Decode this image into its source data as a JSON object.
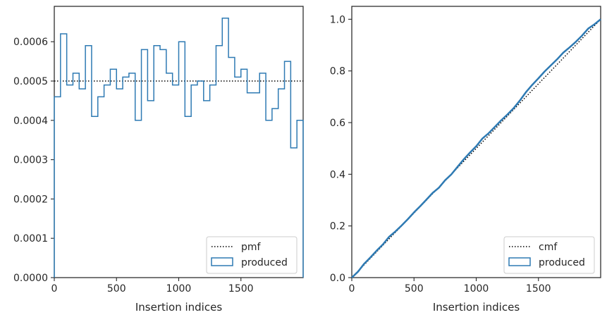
{
  "chart_data": [
    {
      "type": "line",
      "xlabel": "Insertion indices",
      "ylabel": "",
      "xlim": [
        0,
        2000
      ],
      "ylim": [
        0,
        0.00069
      ],
      "xticks": [
        "0",
        "500",
        "1000",
        "1500"
      ],
      "yticks": [
        "0.0000",
        "0.0001",
        "0.0002",
        "0.0003",
        "0.0004",
        "0.0005",
        "0.0006"
      ],
      "legend_position": "lower-right",
      "series": [
        {
          "name": "pmf",
          "style": "dotted",
          "color": "#000000",
          "x": [
            0,
            2000
          ],
          "values": [
            0.0005,
            0.0005
          ]
        },
        {
          "name": "produced",
          "style": "step-histogram",
          "color": "#2e7ab3",
          "bin_edges": [
            0,
            50,
            100,
            150,
            200,
            250,
            300,
            350,
            400,
            450,
            500,
            550,
            600,
            650,
            700,
            750,
            800,
            850,
            900,
            950,
            1000,
            1050,
            1100,
            1150,
            1200,
            1250,
            1300,
            1350,
            1400,
            1450,
            1500,
            1550,
            1600,
            1650,
            1700,
            1750,
            1800,
            1850,
            1900,
            1950,
            2000
          ],
          "values": [
            0.00046,
            0.00062,
            0.00049,
            0.00052,
            0.00048,
            0.00059,
            0.00041,
            0.00046,
            0.00049,
            0.00053,
            0.00048,
            0.00051,
            0.00052,
            0.0004,
            0.00058,
            0.00045,
            0.00059,
            0.00058,
            0.00052,
            0.00049,
            0.0006,
            0.00041,
            0.00049,
            0.0005,
            0.00045,
            0.00049,
            0.00059,
            0.00066,
            0.00056,
            0.00051,
            0.00053,
            0.00047,
            0.00047,
            0.00052,
            0.0004,
            0.00043,
            0.00048,
            0.00055,
            0.00033,
            0.0004
          ]
        }
      ]
    },
    {
      "type": "line",
      "xlabel": "Insertion indices",
      "ylabel": "",
      "xlim": [
        0,
        2000
      ],
      "ylim": [
        0,
        1.05
      ],
      "xticks": [
        "0",
        "500",
        "1000",
        "1500"
      ],
      "yticks": [
        "0.0",
        "0.2",
        "0.4",
        "0.6",
        "0.8",
        "1.0"
      ],
      "legend_position": "lower-right",
      "series": [
        {
          "name": "cmf",
          "style": "dotted",
          "color": "#000000",
          "x": [
            0,
            2000
          ],
          "values": [
            0,
            1.0
          ]
        },
        {
          "name": "produced",
          "style": "step-cumulative",
          "color": "#2e7ab3",
          "x": [
            0,
            50,
            100,
            150,
            200,
            250,
            300,
            350,
            400,
            450,
            500,
            550,
            600,
            650,
            700,
            750,
            800,
            850,
            900,
            950,
            1000,
            1050,
            1100,
            1150,
            1200,
            1250,
            1300,
            1350,
            1400,
            1450,
            1500,
            1550,
            1600,
            1650,
            1700,
            1750,
            1800,
            1850,
            1900,
            1950,
            2000
          ],
          "values": [
            0.0,
            0.023,
            0.054,
            0.0785,
            0.1045,
            0.1285,
            0.158,
            0.1785,
            0.2015,
            0.226,
            0.2525,
            0.2765,
            0.302,
            0.328,
            0.348,
            0.377,
            0.3995,
            0.429,
            0.458,
            0.484,
            0.5085,
            0.5385,
            0.559,
            0.5835,
            0.6085,
            0.631,
            0.6555,
            0.685,
            0.718,
            0.746,
            0.7715,
            0.798,
            0.8215,
            0.845,
            0.871,
            0.891,
            0.9125,
            0.9365,
            0.964,
            0.9805,
            1.0
          ]
        }
      ]
    }
  ]
}
